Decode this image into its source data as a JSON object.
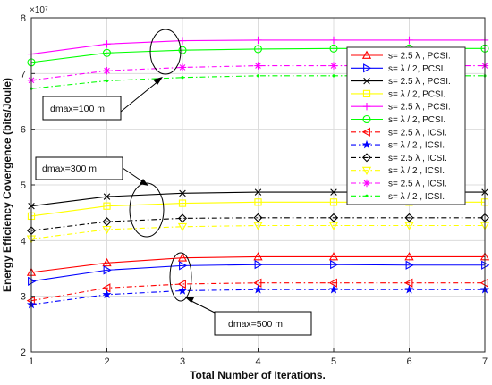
{
  "chart_data": {
    "type": "line",
    "title": "",
    "xlabel": "Total Number of Iterations.",
    "ylabel": "Energy Efficiency Covergence (bits/Joule)",
    "y_multiplier_label": "×10⁷",
    "y_multiplier": 10000000,
    "xlim": [
      1,
      7
    ],
    "ylim": [
      2,
      8
    ],
    "x_ticks": [
      "1",
      "2",
      "3",
      "4",
      "5",
      "6",
      "7"
    ],
    "y_ticks": [
      "2",
      "3",
      "4",
      "5",
      "6",
      "7",
      "8"
    ],
    "grid": true,
    "legend_position": "right",
    "x": [
      1,
      2,
      3,
      4,
      5,
      6,
      7
    ],
    "series": [
      {
        "name": "s= 2.5 λ , PCSI.",
        "color": "#ff0000",
        "marker": "triangle-up",
        "dash": "solid",
        "values": [
          3.43,
          3.6,
          3.69,
          3.71,
          3.71,
          3.71,
          3.71
        ]
      },
      {
        "name": "s= λ / 2, PCSI.",
        "color": "#0000ff",
        "marker": "triangle-right",
        "dash": "solid",
        "values": [
          3.27,
          3.47,
          3.55,
          3.57,
          3.57,
          3.56,
          3.56
        ]
      },
      {
        "name": "s= 2.5 λ , PCSI.",
        "color": "#000000",
        "marker": "x",
        "dash": "solid",
        "values": [
          4.62,
          4.79,
          4.85,
          4.87,
          4.87,
          4.87,
          4.87
        ]
      },
      {
        "name": "s= λ / 2, PCSI.",
        "color": "#ffff00",
        "marker": "square",
        "dash": "solid",
        "values": [
          4.44,
          4.62,
          4.67,
          4.69,
          4.69,
          4.69,
          4.69
        ]
      },
      {
        "name": "s= 2.5 λ , PCSI.",
        "color": "#ff00ff",
        "marker": "plus",
        "dash": "solid",
        "values": [
          7.35,
          7.53,
          7.59,
          7.6,
          7.6,
          7.6,
          7.6
        ]
      },
      {
        "name": "s= λ / 2, PCSI.",
        "color": "#00ff00",
        "marker": "circle",
        "dash": "solid",
        "values": [
          7.2,
          7.37,
          7.42,
          7.44,
          7.45,
          7.45,
          7.45
        ]
      },
      {
        "name": "s= 2.5 λ , ICSI.",
        "color": "#ff0000",
        "marker": "triangle-left",
        "dash": "dashdot",
        "values": [
          2.92,
          3.15,
          3.22,
          3.24,
          3.24,
          3.24,
          3.24
        ]
      },
      {
        "name": "s= λ / 2 , ICSI.",
        "color": "#0000ff",
        "marker": "star",
        "dash": "dashdot",
        "values": [
          2.85,
          3.03,
          3.1,
          3.12,
          3.12,
          3.12,
          3.12
        ]
      },
      {
        "name": "s= 2.5 λ , ICSI.",
        "color": "#000000",
        "marker": "diamond",
        "dash": "dashdot",
        "values": [
          4.18,
          4.34,
          4.4,
          4.41,
          4.41,
          4.41,
          4.41
        ]
      },
      {
        "name": "s= λ / 2 , ICSI.",
        "color": "#ffff00",
        "marker": "triangle-down",
        "dash": "dashdot",
        "values": [
          4.03,
          4.2,
          4.25,
          4.27,
          4.27,
          4.27,
          4.27
        ]
      },
      {
        "name": "s= 2.5 λ , ICSI.",
        "color": "#ff00ff",
        "marker": "asterisk",
        "dash": "dashdot",
        "values": [
          6.88,
          7.05,
          7.11,
          7.14,
          7.14,
          7.14,
          7.14
        ]
      },
      {
        "name": "s= λ / 2 , ICSI.",
        "color": "#00ff00",
        "marker": "dot",
        "dash": "dashdot",
        "values": [
          6.73,
          6.87,
          6.93,
          6.96,
          6.96,
          6.96,
          6.96
        ]
      }
    ],
    "annotations": [
      {
        "text": "dmax=100 m"
      },
      {
        "text": "dmax=300 m"
      },
      {
        "text": "dmax=500 m"
      }
    ]
  }
}
